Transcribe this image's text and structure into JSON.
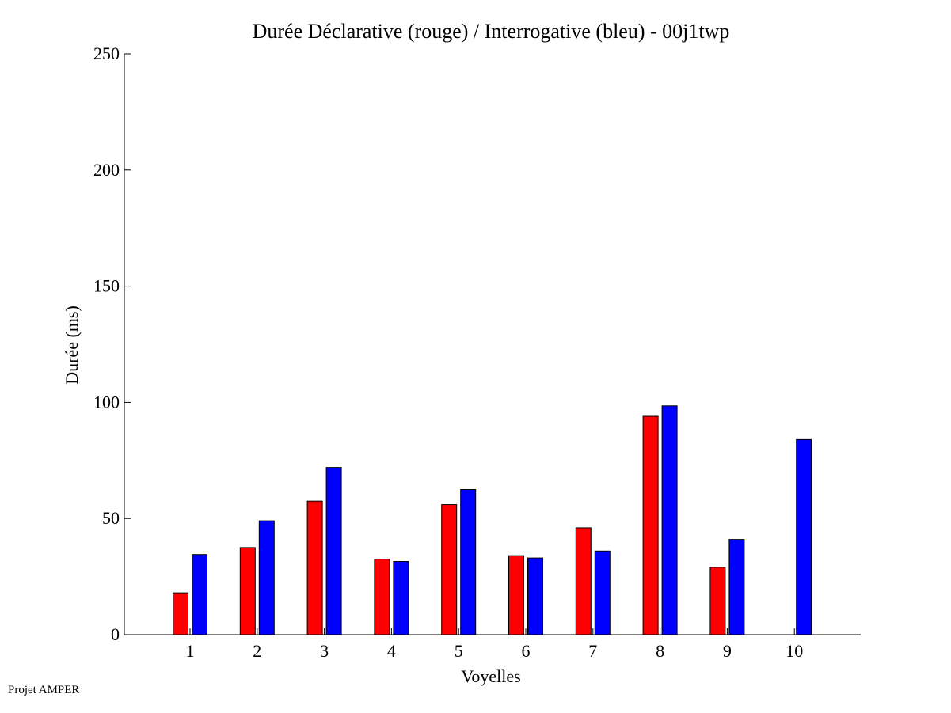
{
  "chart_data": {
    "type": "bar",
    "title": "Durée Déclarative (rouge) / Interrogative (bleu) - 00j1twp",
    "xlabel": "Voyelles",
    "ylabel": "Durée (ms)",
    "categories": [
      "1",
      "2",
      "3",
      "4",
      "5",
      "6",
      "7",
      "8",
      "9",
      "10"
    ],
    "ylim": [
      0,
      250
    ],
    "yticks": [
      0,
      50,
      100,
      150,
      200,
      250
    ],
    "grid": false,
    "series": [
      {
        "color": "#ff0000",
        "values": [
          18,
          37.5,
          57.5,
          32.5,
          56,
          34,
          46,
          94,
          29,
          0
        ]
      },
      {
        "color": "#0000ff",
        "values": [
          34.5,
          49,
          72,
          31.5,
          62.5,
          33,
          36,
          98.5,
          41,
          84
        ]
      }
    ]
  },
  "footer": "Projet AMPER"
}
